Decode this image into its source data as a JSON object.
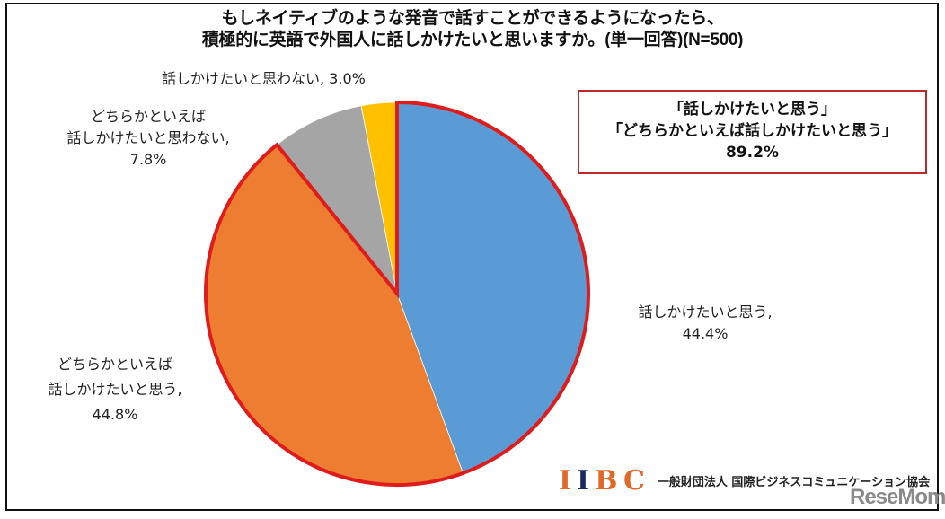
{
  "title": {
    "line1": "もしネイティブのような発音で話すことができるようになったら、",
    "line2": "積極的に英語で外国人に話しかけたいと思いますか。(単一回答)(N=500)"
  },
  "callout": {
    "line1": "「話しかけたいと思う」",
    "line2": "「どちらかといえば話しかけたいと思う」",
    "line3": "89.2%",
    "border_color": "#c0272d"
  },
  "labels": {
    "yes": {
      "line1": "話しかけたいと思う,",
      "line2": "44.4%"
    },
    "somewhat_yes": {
      "line1": "どちらかといえば",
      "line2": "話しかけたいと思う,",
      "line3": "44.8%"
    },
    "somewhat_no": {
      "line1": "どちらかといえば",
      "line2": "話しかけたいと思わない,",
      "line3": "7.8%"
    },
    "no": {
      "line1": "話しかけたいと思わない, 3.0%"
    }
  },
  "logo": {
    "mark_i1": "I",
    "mark_i2": "I",
    "mark_b": "B",
    "mark_c": "C",
    "org_name": "一般財団法人 国際ビジネスコミュニケーション協会"
  },
  "watermark": "ReseMom",
  "chart_data": {
    "type": "pie",
    "title": "もしネイティブのような発音で話すことができるようになったら、積極的に英語で外国人に話しかけたいと思いますか。(単一回答)(N=500)",
    "start_angle_deg": 0,
    "direction": "clockwise",
    "categories": [
      "話しかけたいと思う",
      "どちらかといえば話しかけたいと思う",
      "どちらかといえば話しかけたいと思わない",
      "話しかけたいと思わない"
    ],
    "values": [
      44.4,
      44.8,
      7.8,
      3.0
    ],
    "unit": "%",
    "colors": [
      "#5b9bd5",
      "#ed7d31",
      "#a5a5a5",
      "#ffc000"
    ],
    "highlight": {
      "categories": [
        "話しかけたいと思う",
        "どちらかといえば話しかけたいと思う"
      ],
      "combined_value": 89.2,
      "outline_color": "#e01b1b"
    },
    "n": 500,
    "legend": "none (data labels on slices)"
  }
}
